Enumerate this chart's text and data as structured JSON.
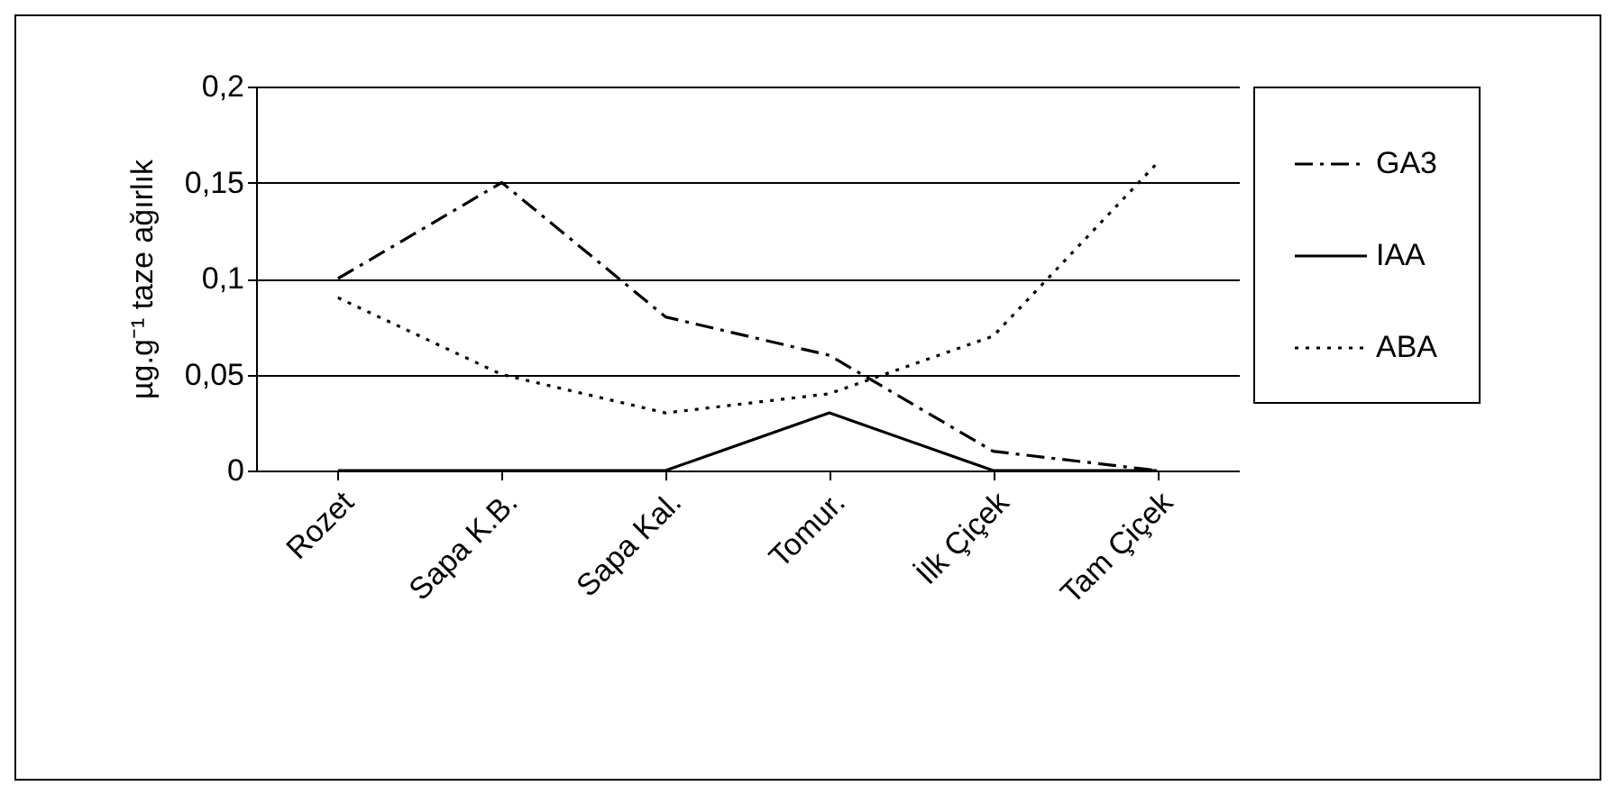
{
  "chart_data": {
    "type": "line",
    "ylabel": "µg.g⁻¹ taze ağırlık",
    "categories": [
      "Rozet",
      "Sapa K.B.",
      "Sapa Kal.",
      "Tomur.",
      "İlk Çiçek",
      "Tam Çiçek"
    ],
    "series": [
      {
        "name": "GA3",
        "color": "#000000",
        "line_style": "dashdot",
        "values": [
          0.1,
          0.15,
          0.08,
          0.06,
          0.01,
          0
        ]
      },
      {
        "name": "IAA",
        "color": "#000000",
        "line_style": "solid",
        "values": [
          0,
          0,
          0,
          0.03,
          0,
          0
        ]
      },
      {
        "name": "ABA",
        "color": "#000000",
        "line_style": "dotted",
        "values": [
          0.09,
          0.05,
          0.03,
          0.04,
          0.07,
          0.16
        ]
      }
    ],
    "ylim": [
      0,
      0.2
    ],
    "yticks": [
      "0",
      {
        "value": 0.05,
        "label": "0,05"
      },
      {
        "value": 0.1,
        "label": "0,1"
      },
      {
        "value": 0.15,
        "label": "0,15"
      },
      {
        "value": 0.2,
        "label": "0,2"
      }
    ],
    "grid": "y",
    "legend": "right",
    "marker": "none"
  }
}
